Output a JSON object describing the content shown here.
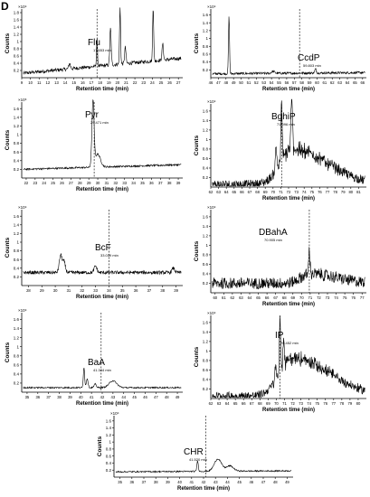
{
  "figure_label": "D",
  "chart_data": [
    {
      "type": "line",
      "compound": "Flu",
      "peak_time_label": "17.653 min",
      "ylabel": "Counts",
      "xlabel": "Retention time (min)",
      "y_multiplier": "×10⁴",
      "x_ticks": [
        9,
        10,
        11,
        12,
        13,
        14,
        15,
        16,
        17,
        18,
        19,
        20,
        21,
        22,
        23,
        24,
        25,
        26,
        27
      ],
      "y_ticks": [
        0.2,
        0.4,
        0.6,
        0.8,
        1,
        1.2,
        1.4,
        1.6,
        1.8
      ],
      "xlim": [
        9,
        27.5
      ],
      "ylim": [
        0,
        1.9
      ],
      "marker_x": 17.65,
      "baseline": 0.12,
      "noise": 0.05,
      "drift": 0.7,
      "peaks": [
        {
          "x": 17.65,
          "y": 0.75,
          "w": 0.06
        },
        {
          "x": 19.2,
          "y": 1.0,
          "w": 0.08
        },
        {
          "x": 20.3,
          "y": 1.55,
          "w": 0.06
        },
        {
          "x": 20.9,
          "y": 0.45,
          "w": 0.08
        },
        {
          "x": 24.1,
          "y": 1.5,
          "w": 0.06
        },
        {
          "x": 25.2,
          "y": 0.45,
          "w": 0.08
        },
        {
          "x": 14.5,
          "y": 0.15,
          "w": 0.1
        }
      ]
    },
    {
      "type": "line",
      "compound": "CcdP",
      "peak_time_label": "59.803 min",
      "ylabel": "Counts",
      "xlabel": "Retention time (min)",
      "y_multiplier": "×10⁴",
      "x_ticks": [
        46,
        47,
        48,
        49,
        50,
        51,
        52,
        53,
        54,
        55,
        56,
        57,
        58,
        59,
        60,
        61,
        62,
        63,
        64,
        65,
        66
      ],
      "y_ticks": [
        0.2,
        0.4,
        0.6,
        0.8,
        1,
        1.2,
        1.4,
        1.6
      ],
      "xlim": [
        46,
        66.5
      ],
      "ylim": [
        0,
        1.75
      ],
      "marker_x": 57.7,
      "baseline": 0.1,
      "noise": 0.03,
      "drift": 0.05,
      "peaks": [
        {
          "x": 48.4,
          "y": 1.45,
          "w": 0.07
        },
        {
          "x": 59.8,
          "y": 0.1,
          "w": 0.1
        },
        {
          "x": 54.2,
          "y": 0.05,
          "w": 0.2
        }
      ]
    },
    {
      "type": "line",
      "compound": "Pyr",
      "peak_time_label": "29.471 min",
      "ylabel": "Counts",
      "xlabel": "Retention time (min)",
      "y_multiplier": "×10⁵",
      "x_ticks": [
        22,
        23,
        24,
        25,
        26,
        27,
        28,
        29,
        30,
        31,
        32,
        33,
        34,
        35,
        36,
        37,
        38,
        39
      ],
      "y_ticks": [
        0.2,
        0.4,
        0.6,
        0.8,
        1,
        1.2,
        1.4,
        1.6
      ],
      "xlim": [
        21.5,
        39.5
      ],
      "ylim": [
        0,
        1.75
      ],
      "marker_x": 29.6,
      "baseline": 0.2,
      "noise": 0.02,
      "drift": 0.18,
      "peaks": [
        {
          "x": 29.47,
          "y": 1.5,
          "w": 0.12
        },
        {
          "x": 30.0,
          "y": 0.3,
          "w": 0.3
        }
      ]
    },
    {
      "type": "line",
      "compound": "BghiP",
      "peak_time_label": "71.096 min",
      "ylabel": "Counts",
      "xlabel": "Retention time (min)",
      "y_multiplier": "×10⁴",
      "x_ticks": [
        62,
        63,
        64,
        65,
        66,
        67,
        68,
        69,
        70,
        71,
        72,
        73,
        74,
        75,
        76,
        77,
        78,
        79,
        80,
        81
      ],
      "y_ticks": [
        0.2,
        0.4,
        0.6,
        0.8,
        1,
        1.2,
        1.4,
        1.6
      ],
      "xlim": [
        62,
        82
      ],
      "ylim": [
        0,
        1.75
      ],
      "marker_x": 71.1,
      "baseline": 0.05,
      "noise": 0.1,
      "drift": 0,
      "hump": {
        "x": 72.5,
        "y": 0.75,
        "w": 4.5
      },
      "peaks": [
        {
          "x": 71.1,
          "y": 1.25,
          "w": 0.08
        },
        {
          "x": 72.4,
          "y": 1.1,
          "w": 0.1
        },
        {
          "x": 70.4,
          "y": 0.5,
          "w": 0.1
        }
      ]
    },
    {
      "type": "line",
      "compound": "BcF",
      "peak_time_label": "33.039 min",
      "ylabel": "Counts",
      "xlabel": "Retention time (min)",
      "y_multiplier": "×10⁴",
      "x_ticks": [
        28,
        29,
        30,
        31,
        32,
        33,
        34,
        35,
        36,
        37,
        38,
        39
      ],
      "y_ticks": [
        0.2,
        0.4,
        0.6,
        0.8,
        1,
        1.2,
        1.4,
        1.6
      ],
      "xlim": [
        27.5,
        39.5
      ],
      "ylim": [
        0,
        1.75
      ],
      "marker_x": 34.0,
      "baseline": 0.3,
      "noise": 0.04,
      "drift": 0,
      "peaks": [
        {
          "x": 30.4,
          "y": 0.4,
          "w": 0.1
        },
        {
          "x": 30.65,
          "y": 0.25,
          "w": 0.1
        },
        {
          "x": 33.0,
          "y": 0.15,
          "w": 0.1
        },
        {
          "x": 38.8,
          "y": 0.1,
          "w": 0.1
        }
      ]
    },
    {
      "type": "line",
      "compound": "DBahA",
      "peak_time_label": "70.905 min",
      "ylabel": "Counts",
      "xlabel": "Retention time (min)",
      "y_multiplier": "×10⁴",
      "x_ticks": [
        60,
        61,
        62,
        63,
        64,
        65,
        66,
        67,
        68,
        69,
        70,
        71,
        72,
        73,
        74,
        75,
        76,
        77
      ],
      "y_ticks": [
        0.2,
        0.4,
        0.6,
        0.8,
        1,
        1.2,
        1.4,
        1.6
      ],
      "xlim": [
        59.5,
        77.5
      ],
      "ylim": [
        0,
        1.75
      ],
      "marker_x": 70.9,
      "baseline": 0.2,
      "noise": 0.12,
      "drift": 0,
      "hump": {
        "x": 71.0,
        "y": 0.2,
        "w": 3
      },
      "peaks": [
        {
          "x": 70.9,
          "y": 0.5,
          "w": 0.08
        }
      ]
    },
    {
      "type": "line",
      "compound": "BaA",
      "peak_time_label": "41.344 min",
      "ylabel": "Counts",
      "xlabel": "Retention time (min)",
      "y_multiplier": "×10⁴",
      "x_ticks": [
        35,
        36,
        37,
        38,
        39,
        40,
        41,
        42,
        43,
        44,
        45,
        46,
        47,
        48,
        49
      ],
      "y_ticks": [
        0.2,
        0.4,
        0.6,
        0.8,
        1,
        1.2,
        1.4,
        1.6
      ],
      "xlim": [
        34.5,
        49.5
      ],
      "ylim": [
        0,
        1.75
      ],
      "marker_x": 41.9,
      "baseline": 0.1,
      "noise": 0.015,
      "drift": 0,
      "peaks": [
        {
          "x": 40.3,
          "y": 0.45,
          "w": 0.06
        },
        {
          "x": 40.6,
          "y": 0.2,
          "w": 0.08
        },
        {
          "x": 41.35,
          "y": 0.08,
          "w": 0.1
        },
        {
          "x": 43.0,
          "y": 0.15,
          "w": 0.35
        }
      ]
    },
    {
      "type": "line",
      "compound": "IP",
      "peak_time_label": "70.452 min",
      "ylabel": "Counts",
      "xlabel": "Retention time (min)",
      "y_multiplier": "×10⁴",
      "x_ticks": [
        62,
        63,
        64,
        65,
        66,
        67,
        68,
        69,
        70,
        71,
        72,
        73,
        74,
        75,
        76,
        77,
        78,
        79,
        80
      ],
      "y_ticks": [
        0.2,
        0.4,
        0.6,
        0.8,
        1,
        1.2,
        1.4,
        1.6
      ],
      "xlim": [
        62,
        81
      ],
      "ylim": [
        0,
        1.75
      ],
      "marker_x": 70.45,
      "baseline": 0.05,
      "noise": 0.09,
      "drift": 0,
      "hump": {
        "x": 72.0,
        "y": 0.8,
        "w": 4.5
      },
      "peaks": [
        {
          "x": 70.45,
          "y": 1.2,
          "w": 0.07
        },
        {
          "x": 70.9,
          "y": 0.6,
          "w": 0.08
        },
        {
          "x": 69.9,
          "y": 0.3,
          "w": 0.08
        }
      ]
    },
    {
      "type": "line",
      "compound": "CHR",
      "peak_time_label": "41.520 min",
      "ylabel": "Counts",
      "xlabel": "Retention time (min)",
      "y_multiplier": "×10⁴",
      "x_ticks": [
        35,
        36,
        37,
        38,
        39,
        40,
        41,
        42,
        43,
        44,
        45,
        46,
        47,
        48,
        49
      ],
      "y_ticks": [
        0.2,
        0.4,
        0.6,
        0.8,
        1,
        1.2,
        1.4,
        1.6
      ],
      "xlim": [
        34.5,
        49.5
      ],
      "ylim": [
        0,
        1.75
      ],
      "marker_x": 42.2,
      "baseline": 0.15,
      "noise": 0.02,
      "drift": 0.05,
      "peaks": [
        {
          "x": 41.5,
          "y": 0.3,
          "w": 0.06
        },
        {
          "x": 43.2,
          "y": 0.35,
          "w": 0.3
        },
        {
          "x": 44.2,
          "y": 0.15,
          "w": 0.3
        }
      ]
    }
  ]
}
